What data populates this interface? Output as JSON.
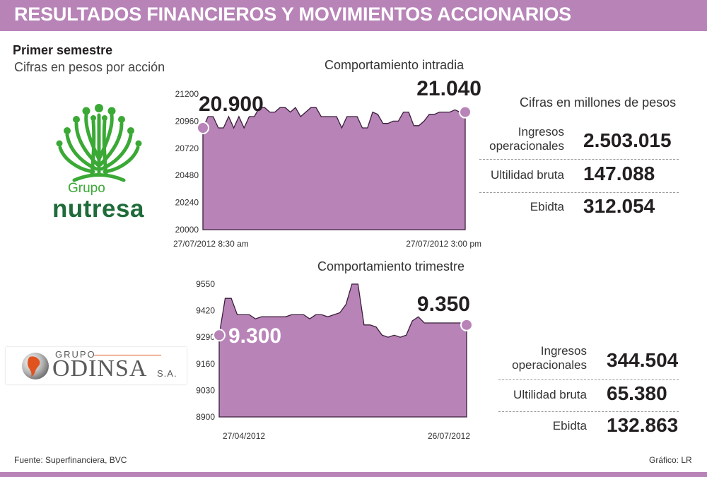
{
  "header": {
    "title": "RESULTADOS FINANCIEROS Y MOVIMIENTOS ACCIONARIOS"
  },
  "subtitle": {
    "period": "Primer semestre",
    "units": "Cifras en pesos por acción"
  },
  "colors": {
    "accent": "#b884b8",
    "area_fill": "#b884b8",
    "marker": "#b884b8",
    "logo_green": "#3aa935",
    "logo_text": "#1f6b3a"
  },
  "nutresa": {
    "logo": {
      "top": "Grupo",
      "bottom": "nutresa",
      "icon": "tree-logo-icon"
    },
    "kpi_units": "Cifras en millones de pesos",
    "kpis": [
      {
        "label": "Ingresos operacionales",
        "value": "2.503.015"
      },
      {
        "label": "Ultilidad bruta",
        "value": "147.088"
      },
      {
        "label": "Ebidta",
        "value": "312.054"
      }
    ]
  },
  "odinsa": {
    "logo": {
      "top": "GRUPO",
      "main": "ODINSA",
      "suffix": "S.A.",
      "icon": "globe-logo-icon"
    },
    "kpis": [
      {
        "label": "Ingresos operacionales",
        "value": "344.504"
      },
      {
        "label": "Ultilidad bruta",
        "value": "65.380"
      },
      {
        "label": "Ebidta",
        "value": "132.863"
      }
    ]
  },
  "footer": {
    "source": "Fuente: Superfinanciera, BVC",
    "credit": "Gráfico: LR"
  },
  "chart_data": [
    {
      "type": "area",
      "title": "Comportamiento intradia",
      "ylim": [
        20000,
        21200
      ],
      "yticks": [
        20000,
        20240,
        20480,
        20720,
        20960,
        21200
      ],
      "x_start_label": "27/07/2012 8:30 am",
      "x_end_label": "27/07/2012 3:00 pm",
      "start_label": "20.900",
      "end_label": "21.040",
      "values": [
        20900,
        21000,
        21000,
        20900,
        20900,
        21000,
        20900,
        21000,
        20900,
        21000,
        21000,
        21080,
        21080,
        21040,
        21040,
        21080,
        21080,
        21040,
        21080,
        21000,
        21040,
        21080,
        21080,
        21000,
        21000,
        21000,
        21000,
        20900,
        21000,
        21000,
        21000,
        20900,
        20900,
        21040,
        21020,
        20940,
        20940,
        20960,
        20960,
        21040,
        21040,
        20920,
        20920,
        20960,
        21020,
        21020,
        21040,
        21040,
        21040,
        21060,
        21040,
        21040
      ]
    },
    {
      "type": "area",
      "title": "Comportamiento trimestre",
      "ylim": [
        8900,
        9550
      ],
      "yticks": [
        8900,
        9030,
        9160,
        9290,
        9420,
        9550
      ],
      "x_start_label": "27/04/2012",
      "x_end_label": "26/07/2012",
      "start_label": "9.300",
      "end_label": "9.350",
      "values": [
        9300,
        9480,
        9480,
        9400,
        9400,
        9400,
        9380,
        9390,
        9390,
        9390,
        9390,
        9390,
        9400,
        9400,
        9400,
        9380,
        9400,
        9400,
        9390,
        9400,
        9410,
        9450,
        9550,
        9550,
        9350,
        9350,
        9340,
        9300,
        9290,
        9300,
        9290,
        9300,
        9370,
        9390,
        9360,
        9360,
        9360,
        9360,
        9360,
        9360,
        9360,
        9350
      ]
    }
  ]
}
